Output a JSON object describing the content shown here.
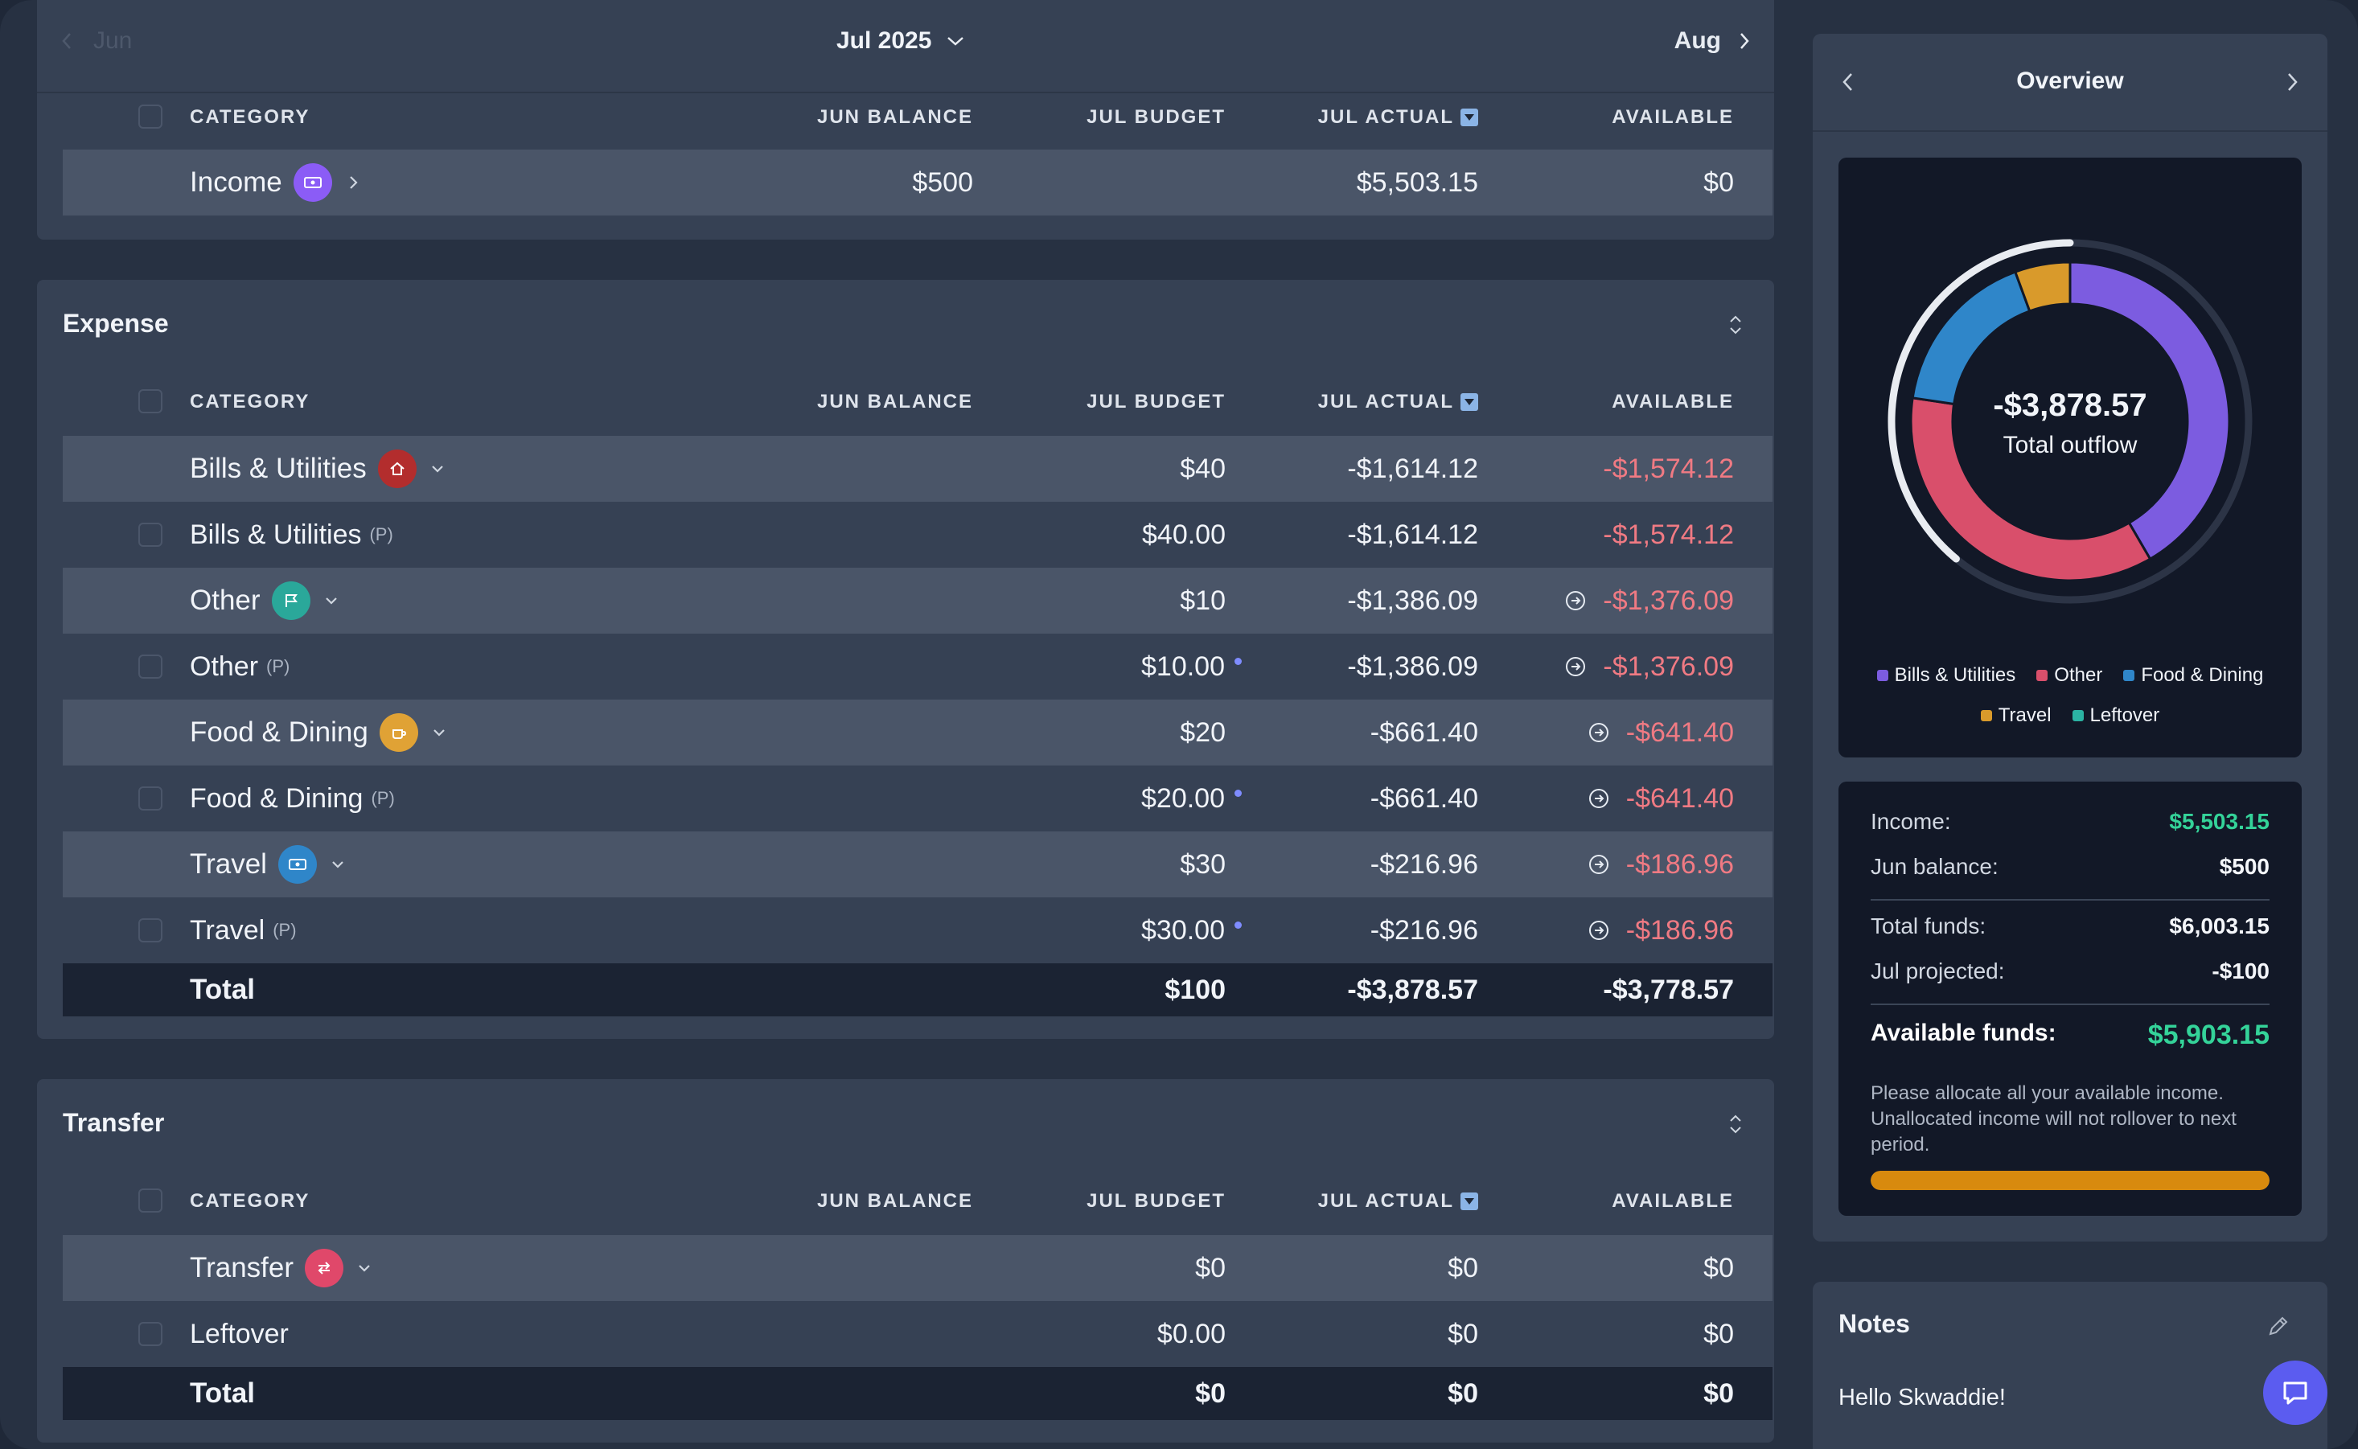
{
  "month_nav": {
    "prev": "Jun",
    "current": "Jul 2025",
    "next": "Aug"
  },
  "columns": {
    "category": "CATEGORY",
    "jun_balance": "JUN BALANCE",
    "jul_budget": "JUL BUDGET",
    "jul_actual": "JUL ACTUAL",
    "available": "AVAILABLE"
  },
  "income": {
    "row": {
      "name": "Income",
      "jun_balance": "$500",
      "budget": "",
      "actual": "$5,503.15",
      "available": "$0"
    }
  },
  "expense": {
    "title": "Expense",
    "rows": [
      {
        "name": "Bills & Utilities",
        "jun_balance": "",
        "budget": "$40",
        "actual": "-$1,614.12",
        "available": "-$1,574.12"
      },
      {
        "name": "Bills & Utilities",
        "badge": "(P)",
        "budget": "$40.00",
        "actual": "-$1,614.12",
        "available": "-$1,574.12"
      },
      {
        "name": "Other",
        "budget": "$10",
        "actual": "-$1,386.09",
        "available": "-$1,376.09"
      },
      {
        "name": "Other",
        "badge": "(P)",
        "budget": "$10.00",
        "actual": "-$1,386.09",
        "available": "-$1,376.09"
      },
      {
        "name": "Food & Dining",
        "budget": "$20",
        "actual": "-$661.40",
        "available": "-$641.40"
      },
      {
        "name": "Food & Dining",
        "badge": "(P)",
        "budget": "$20.00",
        "actual": "-$661.40",
        "available": "-$641.40"
      },
      {
        "name": "Travel",
        "budget": "$30",
        "actual": "-$216.96",
        "available": "-$186.96"
      },
      {
        "name": "Travel",
        "badge": "(P)",
        "budget": "$30.00",
        "actual": "-$216.96",
        "available": "-$186.96"
      }
    ],
    "total": {
      "name": "Total",
      "budget": "$100",
      "actual": "-$3,878.57",
      "available": "-$3,778.57"
    }
  },
  "transfer": {
    "title": "Transfer",
    "rows": [
      {
        "name": "Transfer",
        "budget": "$0",
        "actual": "$0",
        "available": "$0"
      },
      {
        "name": "Leftover",
        "budget": "$0.00",
        "actual": "$0",
        "available": "$0"
      }
    ],
    "total": {
      "name": "Total",
      "budget": "$0",
      "actual": "$0",
      "available": "$0"
    }
  },
  "overview": {
    "title": "Overview",
    "center_value": "-$3,878.57",
    "center_label": "Total outflow",
    "legend": [
      {
        "name": "Bills & Utilities",
        "color": "#7c5ce0"
      },
      {
        "name": "Other",
        "color": "#d94f6b"
      },
      {
        "name": "Food & Dining",
        "color": "#2f86c9"
      },
      {
        "name": "Travel",
        "color": "#d99a2b"
      },
      {
        "name": "Leftover",
        "color": "#2bb3a3"
      }
    ],
    "segments": [
      {
        "name": "Bills & Utilities",
        "value": 1614.12
      },
      {
        "name": "Other",
        "value": 1386.09
      },
      {
        "name": "Food & Dining",
        "value": 661.4
      },
      {
        "name": "Travel",
        "value": 216.96
      }
    ]
  },
  "summary": {
    "income_label": "Income:",
    "income_value": "$5,503.15",
    "jun_balance_label": "Jun balance:",
    "jun_balance_value": "$500",
    "total_funds_label": "Total funds:",
    "total_funds_value": "$6,003.15",
    "projected_label": "Jul projected:",
    "projected_value": "-$100",
    "available_label": "Available funds:",
    "available_value": "$5,903.15",
    "note": "Please allocate all your available income. Unallocated income will not rollover to next period.",
    "progress": 1.0
  },
  "notes": {
    "title": "Notes",
    "body": "Hello Skwaddie!"
  }
}
